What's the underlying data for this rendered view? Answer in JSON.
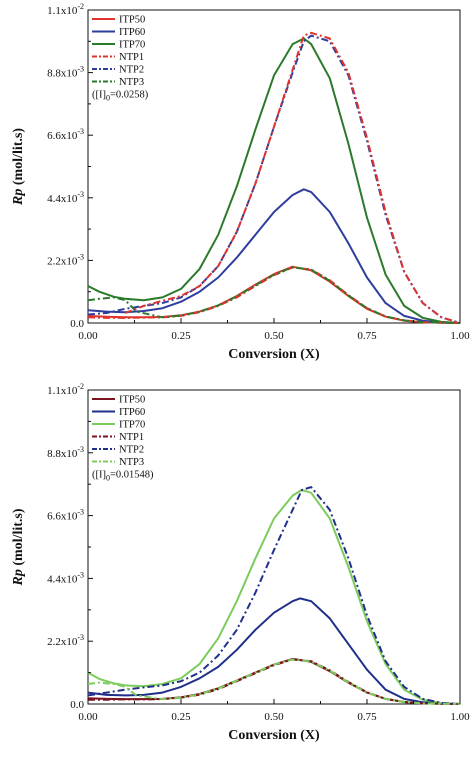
{
  "chart_data": [
    {
      "type": "line",
      "xlabel": "Conversion (X)",
      "ylabel": "Rp (mol/lit.s)",
      "xlim": [
        0,
        1
      ],
      "ylim": [
        0,
        0.011
      ],
      "x_ticks": [
        0,
        0.25,
        0.5,
        0.75,
        1.0
      ],
      "x_tick_labels": [
        "0.00",
        "0.25",
        "0.50",
        "0.75",
        "1.00"
      ],
      "y_ticks": [
        0,
        0.0022,
        0.0044,
        0.0066,
        0.0088,
        0.011
      ],
      "y_tick_labels": [
        {
          "mant": "0.0",
          "exp": ""
        },
        {
          "mant": "2.2x10",
          "exp": "-3"
        },
        {
          "mant": "4.4x10",
          "exp": "-3"
        },
        {
          "mant": "6.6x10",
          "exp": "-3"
        },
        {
          "mant": "8.8x10",
          "exp": "-3"
        },
        {
          "mant": "1.1x10",
          "exp": "-2"
        }
      ],
      "legend_position": "top-left",
      "annotation": {
        "pre": "([I]",
        "sub": "0",
        "post": "=0.0258)"
      },
      "series": [
        {
          "name": "ITP50",
          "color": "#e0332e",
          "dash": "solid",
          "x": [
            0,
            0.05,
            0.1,
            0.15,
            0.2,
            0.25,
            0.3,
            0.35,
            0.4,
            0.45,
            0.5,
            0.55,
            0.6,
            0.65,
            0.7,
            0.75,
            0.8,
            0.85,
            0.9,
            0.95,
            1.0
          ],
          "y": [
            0.00025,
            0.00022,
            0.0002,
            0.0002,
            0.00021,
            0.00027,
            0.0004,
            0.00062,
            0.00095,
            0.00135,
            0.00172,
            0.00198,
            0.00185,
            0.00145,
            0.00095,
            0.0005,
            0.00022,
            8e-05,
            3e-05,
            1e-05,
            0
          ]
        },
        {
          "name": "ITP60",
          "color": "#2e3d9e",
          "dash": "solid",
          "x": [
            0,
            0.05,
            0.1,
            0.15,
            0.2,
            0.25,
            0.3,
            0.35,
            0.4,
            0.45,
            0.5,
            0.55,
            0.58,
            0.6,
            0.65,
            0.7,
            0.75,
            0.8,
            0.85,
            0.9,
            0.95,
            1.0
          ],
          "y": [
            0.00045,
            0.0004,
            0.00038,
            0.00042,
            0.00052,
            0.00075,
            0.0011,
            0.0016,
            0.0023,
            0.0031,
            0.0039,
            0.0045,
            0.0047,
            0.0046,
            0.0039,
            0.0028,
            0.0016,
            0.0007,
            0.00025,
            8e-05,
            2e-05,
            0
          ]
        },
        {
          "name": "ITP70",
          "color": "#2b7a2b",
          "dash": "solid",
          "x": [
            0,
            0.03,
            0.07,
            0.1,
            0.15,
            0.2,
            0.25,
            0.3,
            0.35,
            0.4,
            0.45,
            0.5,
            0.55,
            0.58,
            0.6,
            0.65,
            0.7,
            0.75,
            0.8,
            0.85,
            0.9,
            0.95,
            1.0
          ],
          "y": [
            0.0013,
            0.0011,
            0.00092,
            0.00085,
            0.0008,
            0.0009,
            0.0012,
            0.0019,
            0.0031,
            0.0048,
            0.0068,
            0.0087,
            0.0098,
            0.01,
            0.0098,
            0.0086,
            0.0063,
            0.0037,
            0.0017,
            0.0006,
            0.00018,
            4e-05,
            0
          ]
        },
        {
          "name": "NTP1",
          "color": "#e0332e",
          "dash": "dashdot",
          "x": [
            0,
            0.05,
            0.1,
            0.15,
            0.2,
            0.25,
            0.3,
            0.35,
            0.4,
            0.45,
            0.5,
            0.55,
            0.6,
            0.65,
            0.7,
            0.75,
            0.8,
            0.85,
            0.9,
            0.95,
            1.0
          ],
          "y": [
            0.0002,
            0.00018,
            0.00018,
            0.00019,
            0.0002,
            0.00025,
            0.00038,
            0.0006,
            0.0009,
            0.0013,
            0.00168,
            0.00195,
            0.00188,
            0.0015,
            0.00098,
            0.00052,
            0.00023,
            9e-05,
            3e-05,
            1e-05,
            0
          ]
        },
        {
          "name": "NTP2",
          "color": "#2e3d9e",
          "dash": "dashdot",
          "x": [
            0,
            0.05,
            0.1,
            0.15,
            0.2,
            0.25,
            0.3,
            0.35,
            0.4,
            0.45,
            0.5,
            0.55,
            0.58,
            0.6,
            0.65,
            0.7,
            0.75,
            0.8,
            0.85,
            0.9,
            0.95,
            1.0
          ],
          "y": [
            0.0003,
            0.00035,
            0.0005,
            0.0006,
            0.0007,
            0.0009,
            0.0013,
            0.002,
            0.0032,
            0.0049,
            0.0069,
            0.0088,
            0.0099,
            0.0101,
            0.0099,
            0.0087,
            0.0064,
            0.0038,
            0.0018,
            0.0007,
            0.0002,
            0
          ]
        },
        {
          "name": "NTP3",
          "color": "#2b7a2b",
          "dash": "dashdot",
          "x": [
            0,
            0.03,
            0.07,
            0.1,
            0.13,
            0.2,
            0.25,
            0.3,
            0.35,
            0.4,
            0.45,
            0.5,
            0.55,
            0.6,
            0.65,
            0.7,
            0.75,
            0.8,
            0.85,
            0.9,
            0.95,
            1.0
          ],
          "y": [
            0.0008,
            0.00085,
            0.0009,
            0.0008,
            0.0004,
            0.0002,
            0.00026,
            0.0004,
            0.00062,
            0.00094,
            0.00132,
            0.0017,
            0.00196,
            0.00187,
            0.00148,
            0.00097,
            0.00052,
            0.00023,
            9e-05,
            3e-05,
            1e-05,
            0
          ]
        },
        {
          "name": "",
          "color": "#e0332e",
          "dash": "dashdot",
          "x": [
            0.1,
            0.15,
            0.2,
            0.25,
            0.3,
            0.35,
            0.4,
            0.45,
            0.5,
            0.55,
            0.58,
            0.6,
            0.65,
            0.7,
            0.75,
            0.8,
            0.85,
            0.9,
            0.95,
            1.0
          ],
          "y": [
            0.00035,
            0.0006,
            0.00078,
            0.00095,
            0.0013,
            0.002,
            0.0032,
            0.0049,
            0.0069,
            0.0089,
            0.0101,
            0.0102,
            0.01,
            0.0088,
            0.0065,
            0.0039,
            0.0018,
            0.0007,
            0.0002,
            0
          ]
        }
      ]
    },
    {
      "type": "line",
      "xlabel": "Conversion (X)",
      "ylabel": "Rp (mol/lit.s)",
      "xlim": [
        0,
        1
      ],
      "ylim": [
        0,
        0.011
      ],
      "x_ticks": [
        0,
        0.25,
        0.5,
        0.75,
        1.0
      ],
      "x_tick_labels": [
        "0.00",
        "0.25",
        "0.50",
        "0.75",
        "1.00"
      ],
      "y_ticks": [
        0,
        0.0022,
        0.0044,
        0.0066,
        0.0088,
        0.011
      ],
      "y_tick_labels": [
        {
          "mant": "0.0",
          "exp": ""
        },
        {
          "mant": "2.2x10",
          "exp": "-3"
        },
        {
          "mant": "4.4x10",
          "exp": "-3"
        },
        {
          "mant": "6.6x10",
          "exp": "-3"
        },
        {
          "mant": "8.8x10",
          "exp": "-3"
        },
        {
          "mant": "1.1x10",
          "exp": "-2"
        }
      ],
      "legend_position": "top-left",
      "annotation": {
        "pre": "([I]",
        "sub": "0",
        "post": "=0.01548)"
      },
      "series": [
        {
          "name": "ITP50",
          "color": "#7b1420",
          "dash": "solid",
          "x": [
            0,
            0.05,
            0.1,
            0.15,
            0.2,
            0.25,
            0.3,
            0.35,
            0.4,
            0.45,
            0.5,
            0.55,
            0.6,
            0.65,
            0.7,
            0.75,
            0.8,
            0.85,
            0.9,
            0.95,
            1.0
          ],
          "y": [
            0.0002,
            0.00018,
            0.00017,
            0.00017,
            0.00018,
            0.00023,
            0.00035,
            0.00055,
            0.00082,
            0.0011,
            0.00138,
            0.00158,
            0.00148,
            0.00115,
            0.00075,
            0.0004,
            0.00018,
            7e-05,
            2e-05,
            1e-05,
            0
          ]
        },
        {
          "name": "ITP60",
          "color": "#1f2f8a",
          "dash": "solid",
          "x": [
            0,
            0.05,
            0.1,
            0.15,
            0.2,
            0.25,
            0.3,
            0.35,
            0.4,
            0.45,
            0.5,
            0.55,
            0.57,
            0.6,
            0.65,
            0.7,
            0.75,
            0.8,
            0.85,
            0.9,
            0.95,
            1.0
          ],
          "y": [
            0.0004,
            0.00032,
            0.0003,
            0.00032,
            0.0004,
            0.0006,
            0.0009,
            0.0013,
            0.0019,
            0.0026,
            0.0032,
            0.0036,
            0.0037,
            0.0036,
            0.003,
            0.0021,
            0.0012,
            0.0005,
            0.00018,
            6e-05,
            2e-05,
            0
          ]
        },
        {
          "name": "ITP70",
          "color": "#7ccc5c",
          "dash": "solid",
          "x": [
            0,
            0.03,
            0.07,
            0.1,
            0.15,
            0.2,
            0.25,
            0.3,
            0.35,
            0.4,
            0.45,
            0.5,
            0.55,
            0.575,
            0.6,
            0.65,
            0.7,
            0.75,
            0.8,
            0.85,
            0.9,
            0.95,
            1.0
          ],
          "y": [
            0.0011,
            0.00088,
            0.00072,
            0.00065,
            0.00062,
            0.0007,
            0.0009,
            0.0014,
            0.0023,
            0.0036,
            0.0051,
            0.0065,
            0.0073,
            0.0075,
            0.0074,
            0.0065,
            0.0048,
            0.0029,
            0.0014,
            0.0005,
            0.00015,
            3e-05,
            0
          ]
        },
        {
          "name": "NTP1",
          "color": "#7b1420",
          "dash": "dashdot",
          "x": [
            0,
            0.05,
            0.1,
            0.15,
            0.2,
            0.25,
            0.3,
            0.35,
            0.4,
            0.45,
            0.5,
            0.55,
            0.6,
            0.65,
            0.7,
            0.75,
            0.8,
            0.85,
            0.9,
            0.95,
            1.0
          ],
          "y": [
            0.00015,
            0.00015,
            0.00016,
            0.00016,
            0.00017,
            0.00022,
            0.00033,
            0.00052,
            0.0008,
            0.00108,
            0.00136,
            0.00156,
            0.0015,
            0.00118,
            0.00077,
            0.00041,
            0.00018,
            7e-05,
            2e-05,
            1e-05,
            0
          ]
        },
        {
          "name": "NTP2",
          "color": "#1f2f8a",
          "dash": "dashdot",
          "x": [
            0,
            0.05,
            0.1,
            0.15,
            0.2,
            0.25,
            0.3,
            0.35,
            0.4,
            0.45,
            0.5,
            0.55,
            0.575,
            0.6,
            0.65,
            0.7,
            0.75,
            0.8,
            0.85,
            0.9,
            0.95,
            1.0
          ],
          "y": [
            0.0003,
            0.0004,
            0.0005,
            0.00058,
            0.00065,
            0.0008,
            0.0011,
            0.0017,
            0.0026,
            0.0039,
            0.0054,
            0.0068,
            0.0075,
            0.0076,
            0.0068,
            0.0051,
            0.0031,
            0.0015,
            0.0006,
            0.00018,
            4e-05,
            0
          ]
        },
        {
          "name": "NTP3",
          "color": "#7ccc5c",
          "dash": "dashdot",
          "x": [
            0,
            0.03,
            0.07,
            0.1,
            0.13,
            0.2,
            0.25,
            0.3,
            0.35,
            0.4,
            0.45,
            0.5,
            0.55,
            0.6,
            0.65,
            0.7,
            0.75,
            0.8,
            0.85,
            0.9,
            0.95,
            1.0
          ],
          "y": [
            0.0007,
            0.00075,
            0.0007,
            0.0006,
            0.0003,
            0.00017,
            0.00022,
            0.00034,
            0.00054,
            0.00082,
            0.0011,
            0.00138,
            0.00156,
            0.00149,
            0.00117,
            0.00076,
            0.0004,
            0.00018,
            7e-05,
            2e-05,
            1e-05,
            0
          ]
        }
      ]
    }
  ]
}
